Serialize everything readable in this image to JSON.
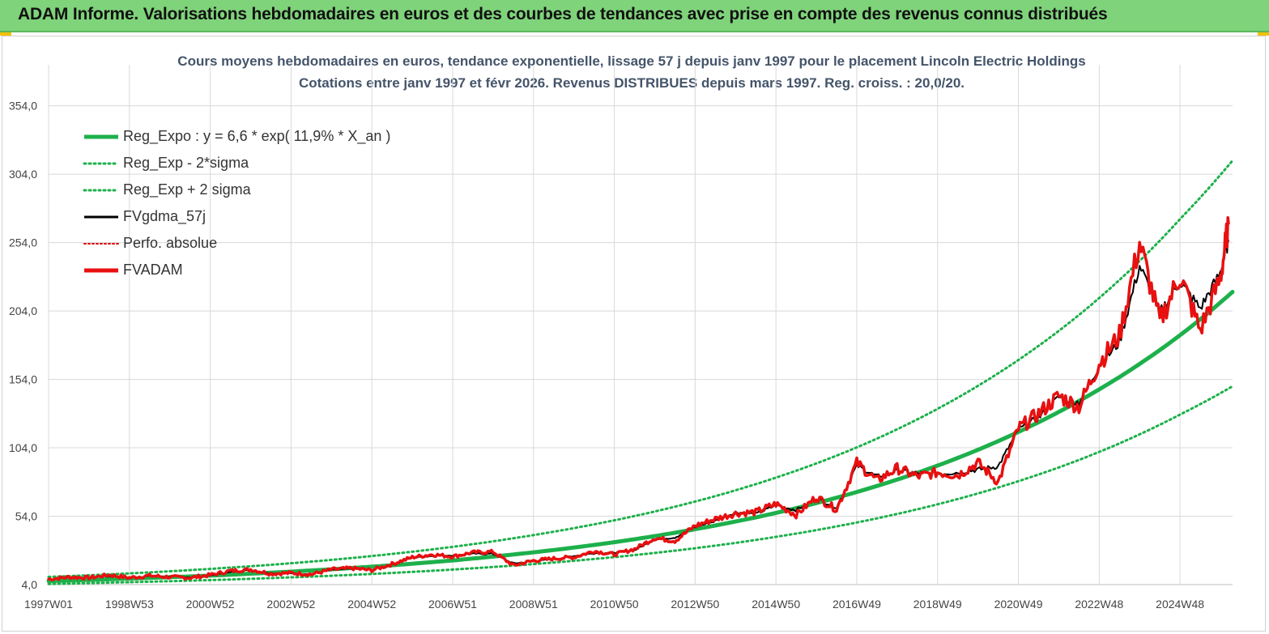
{
  "banner": {
    "title": "ADAM Informe. Valorisations hebdomadaires en euros et des courbes de tendances avec prise en compte des revenus connus distribués"
  },
  "colors": {
    "banner_bg": "#7fd37a",
    "reg_expo": "#1db04b",
    "fvgdma": "#000000",
    "perfo": "#e00000",
    "fvadam": "#e81010",
    "grid": "#d9d9d9"
  },
  "chart_data": {
    "type": "line",
    "title": "Cours moyens hebdomadaires en euros, tendance exponentielle, lissage 57 j depuis janv 1997 pour le placement Lincoln Electric Holdings",
    "subtitle": "Cotations entre janv 1997 et févr 2026. Revenus DISTRIBUES depuis mars 1997. Reg. croiss. : 20,0/20.",
    "xlabel": "",
    "ylabel": "",
    "ylim": [
      4,
      384
    ],
    "y_ticks": [
      "4,0",
      "54,0",
      "104,0",
      "154,0",
      "204,0",
      "254,0",
      "304,0",
      "354,0"
    ],
    "x_range": [
      1997.0,
      2026.3
    ],
    "x_ticks": [
      {
        "label": "1997W01",
        "year": 1997.0
      },
      {
        "label": "1998W53",
        "year": 1999.0
      },
      {
        "label": "2000W52",
        "year": 2001.0
      },
      {
        "label": "2002W52",
        "year": 2003.0
      },
      {
        "label": "2004W52",
        "year": 2005.0
      },
      {
        "label": "2006W51",
        "year": 2007.0
      },
      {
        "label": "2008W51",
        "year": 2009.0
      },
      {
        "label": "2010W50",
        "year": 2011.0
      },
      {
        "label": "2012W50",
        "year": 2013.0
      },
      {
        "label": "2014W50",
        "year": 2015.0
      },
      {
        "label": "2016W49",
        "year": 2017.0
      },
      {
        "label": "2018W49",
        "year": 2019.0
      },
      {
        "label": "2020W49",
        "year": 2021.0
      },
      {
        "label": "2022W48",
        "year": 2023.0
      },
      {
        "label": "2024W48",
        "year": 2025.0
      }
    ],
    "grid": true,
    "legend_position": "top-left",
    "legend": [
      {
        "name": "Reg_Expo : y = 6,6 * exp( 11,9% *  X_an )",
        "style": "solid-thick",
        "color": "#1db04b"
      },
      {
        "name": "Reg_Exp - 2*sigma",
        "style": "dotted",
        "color": "#1db04b"
      },
      {
        "name": "Reg_Exp + 2 sigma",
        "style": "dotted",
        "color": "#1db04b"
      },
      {
        "name": "FVgdma_57j",
        "style": "solid",
        "color": "#000000"
      },
      {
        "name": "Perfo. absolue",
        "style": "dotted-thin",
        "color": "#e00000"
      },
      {
        "name": "FVADAM",
        "style": "solid-thick",
        "color": "#e81010"
      }
    ],
    "series": [
      {
        "name": "Reg_Expo : y = 6,6 * exp( 11,9% *  X_an )",
        "x": [
          1997.0,
          1999.0,
          2001.0,
          2003.0,
          2005.0,
          2007.0,
          2009.0,
          2011.0,
          2013.0,
          2015.0,
          2017.0,
          2019.0,
          2021.0,
          2023.0,
          2025.0,
          2026.3
        ],
        "values": [
          6.6,
          8.4,
          10.6,
          13.5,
          17.1,
          21.7,
          27.6,
          35.0,
          44.5,
          56.4,
          71.7,
          91.0,
          115.6,
          146.7,
          186.3,
          218.0
        ]
      },
      {
        "name": "Reg_Exp - 2*sigma",
        "x": [
          1997.0,
          1999.0,
          2001.0,
          2003.0,
          2005.0,
          2007.0,
          2009.0,
          2011.0,
          2013.0,
          2015.0,
          2017.0,
          2019.0,
          2021.0,
          2023.0,
          2025.0,
          2026.3
        ],
        "values": [
          4.5,
          5.8,
          7.3,
          9.3,
          11.8,
          15.0,
          19.0,
          24.1,
          30.6,
          38.9,
          49.4,
          62.7,
          79.6,
          101.0,
          128.3,
          149.0
        ]
      },
      {
        "name": "Reg_Exp + 2 sigma",
        "x": [
          1997.0,
          1999.0,
          2001.0,
          2003.0,
          2005.0,
          2007.0,
          2009.0,
          2011.0,
          2013.0,
          2015.0,
          2017.0,
          2019.0,
          2021.0,
          2023.0,
          2025.0,
          2026.3
        ],
        "values": [
          9.6,
          12.2,
          15.5,
          19.6,
          24.9,
          31.6,
          40.2,
          51.0,
          64.7,
          82.2,
          104.3,
          132.5,
          168.2,
          213.5,
          271.2,
          314.0
        ]
      },
      {
        "name": "FVgdma_57j",
        "x": [
          1997.0,
          1997.5,
          1998.0,
          1998.5,
          1999.0,
          1999.5,
          2000.0,
          2000.5,
          2001.0,
          2001.5,
          2002.0,
          2002.5,
          2003.0,
          2003.5,
          2004.0,
          2004.5,
          2005.0,
          2005.5,
          2006.0,
          2006.5,
          2007.0,
          2007.5,
          2008.0,
          2008.5,
          2009.0,
          2009.5,
          2010.0,
          2010.5,
          2011.0,
          2011.5,
          2012.0,
          2012.5,
          2013.0,
          2013.5,
          2014.0,
          2014.5,
          2015.0,
          2015.5,
          2016.0,
          2016.5,
          2017.0,
          2017.5,
          2018.0,
          2018.5,
          2019.0,
          2019.5,
          2020.0,
          2020.5,
          2021.0,
          2021.5,
          2022.0,
          2022.5,
          2023.0,
          2023.5,
          2024.0,
          2024.5,
          2025.0,
          2025.5,
          2026.0,
          2026.2
        ],
        "values": [
          8.0,
          9.0,
          9.5,
          10.0,
          9.5,
          10.0,
          10.0,
          9.5,
          10.5,
          13.0,
          14.5,
          12.5,
          12.0,
          12.0,
          14.5,
          15.5,
          15.0,
          18.5,
          23.5,
          25.0,
          25.5,
          26.5,
          26.5,
          19.5,
          21.0,
          22.5,
          25.0,
          27.0,
          27.5,
          29.0,
          37.0,
          38.5,
          46.0,
          50.5,
          57.0,
          55.5,
          62.0,
          58.5,
          67.0,
          60.5,
          91.0,
          83.0,
          87.0,
          85.5,
          85.0,
          86.0,
          88.0,
          90.5,
          117.0,
          126.0,
          141.0,
          137.0,
          164.0,
          181.0,
          237.0,
          203.0,
          225.0,
          206.0,
          232.0,
          255.0
        ]
      },
      {
        "name": "FVADAM",
        "x": [
          1997.0,
          1997.5,
          1998.0,
          1998.5,
          1999.0,
          1999.5,
          2000.0,
          2000.5,
          2001.0,
          2001.5,
          2002.0,
          2002.5,
          2003.0,
          2003.5,
          2004.0,
          2004.5,
          2005.0,
          2005.5,
          2006.0,
          2006.5,
          2007.0,
          2007.5,
          2008.0,
          2008.5,
          2009.0,
          2009.5,
          2010.0,
          2010.5,
          2011.0,
          2011.5,
          2012.0,
          2012.5,
          2013.0,
          2013.5,
          2014.0,
          2014.5,
          2015.0,
          2015.5,
          2016.0,
          2016.5,
          2017.0,
          2017.5,
          2018.0,
          2018.5,
          2019.0,
          2019.5,
          2020.0,
          2020.5,
          2021.0,
          2021.5,
          2022.0,
          2022.5,
          2023.0,
          2023.5,
          2024.0,
          2024.5,
          2025.0,
          2025.5,
          2026.0,
          2026.2
        ],
        "values": [
          8.0,
          9.5,
          9.0,
          11.0,
          9.0,
          10.5,
          9.5,
          9.0,
          11.0,
          14.0,
          15.0,
          12.0,
          12.5,
          11.5,
          15.0,
          16.0,
          14.5,
          19.0,
          24.0,
          26.0,
          24.5,
          27.5,
          28.0,
          18.0,
          21.5,
          23.0,
          24.0,
          28.5,
          26.0,
          30.0,
          38.0,
          36.0,
          47.0,
          52.0,
          56.0,
          57.0,
          63.0,
          55.0,
          68.0,
          59.0,
          93.0,
          80.0,
          89.0,
          83.0,
          86.0,
          84.0,
          93.0,
          79.0,
          118.0,
          129.0,
          142.0,
          134.0,
          166.0,
          186.0,
          254.0,
          196.0,
          230.0,
          190.0,
          228.0,
          268.0
        ]
      }
    ]
  }
}
